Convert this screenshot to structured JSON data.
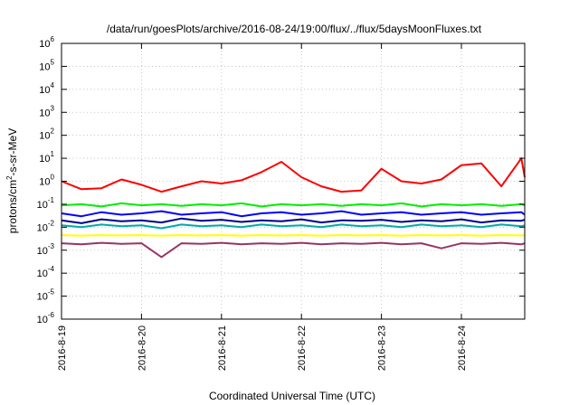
{
  "chart_data": {
    "type": "line",
    "title": "/data/run/goesPlots/archive/2016-08-24/19:00/flux/../flux/5daysMoonFluxes.txt",
    "xlabel": "Coordinated Universal Time (UTC)",
    "ylabel": "protons/cm²-s-sr-MeV",
    "yscale": "log",
    "ylim": [
      1e-06,
      1000000.0
    ],
    "xlim": [
      "2016-08-19 00:00",
      "2016-08-24 19:00"
    ],
    "grid": true,
    "x_tick_labels": [
      "2016-8-19",
      "2016-8-20",
      "2016-8-21",
      "2016-8-22",
      "2016-8-23",
      "2016-8-24"
    ],
    "y_ticks": [
      {
        "value": 1e-06,
        "base": "10",
        "exp": "-6"
      },
      {
        "value": 1e-05,
        "base": "10",
        "exp": "-5"
      },
      {
        "value": 0.0001,
        "base": "10",
        "exp": "-4"
      },
      {
        "value": 0.001,
        "base": "10",
        "exp": "-3"
      },
      {
        "value": 0.01,
        "base": "10",
        "exp": "-2"
      },
      {
        "value": 0.1,
        "base": "10",
        "exp": "-1"
      },
      {
        "value": 1,
        "base": "10",
        "exp": "0"
      },
      {
        "value": 10,
        "base": "10",
        "exp": "1"
      },
      {
        "value": 100,
        "base": "10",
        "exp": "2"
      },
      {
        "value": 1000,
        "base": "10",
        "exp": "3"
      },
      {
        "value": 10000,
        "base": "10",
        "exp": "4"
      },
      {
        "value": 100000,
        "base": "10",
        "exp": "5"
      },
      {
        "value": 1000000,
        "base": "10",
        "exp": "6"
      }
    ],
    "x_hours": [
      0,
      6,
      12,
      18,
      24,
      30,
      36,
      42,
      48,
      54,
      60,
      66,
      72,
      78,
      84,
      90,
      96,
      102,
      108,
      114,
      120,
      126,
      132,
      138,
      139
    ],
    "series": [
      {
        "color": "#ff0000",
        "values": [
          1.0,
          0.45,
          0.5,
          1.2,
          0.7,
          0.35,
          0.6,
          1.0,
          0.8,
          1.1,
          2.5,
          7.0,
          1.5,
          0.6,
          0.35,
          0.4,
          3.5,
          1.0,
          0.8,
          1.2,
          5.0,
          6.0,
          0.6,
          10.0,
          1.5
        ]
      },
      {
        "color": "#00ee00",
        "values": [
          0.09,
          0.1,
          0.08,
          0.11,
          0.09,
          0.1,
          0.085,
          0.1,
          0.09,
          0.11,
          0.08,
          0.1,
          0.09,
          0.1,
          0.085,
          0.1,
          0.09,
          0.11,
          0.08,
          0.1,
          0.09,
          0.1,
          0.085,
          0.1,
          0.09
        ]
      },
      {
        "color": "#0000ff",
        "values": [
          0.04,
          0.03,
          0.045,
          0.035,
          0.04,
          0.05,
          0.035,
          0.04,
          0.045,
          0.03,
          0.04,
          0.045,
          0.035,
          0.04,
          0.05,
          0.035,
          0.04,
          0.045,
          0.035,
          0.04,
          0.045,
          0.035,
          0.04,
          0.045,
          0.035
        ]
      },
      {
        "color": "#00008b",
        "values": [
          0.02,
          0.015,
          0.022,
          0.018,
          0.02,
          0.016,
          0.024,
          0.019,
          0.021,
          0.017,
          0.02,
          0.018,
          0.022,
          0.016,
          0.02,
          0.019,
          0.021,
          0.017,
          0.02,
          0.018,
          0.022,
          0.016,
          0.02,
          0.019,
          0.021
        ]
      },
      {
        "color": "#00aaaa",
        "values": [
          0.012,
          0.01,
          0.013,
          0.011,
          0.012,
          0.009,
          0.013,
          0.011,
          0.012,
          0.01,
          0.013,
          0.011,
          0.012,
          0.01,
          0.013,
          0.011,
          0.012,
          0.01,
          0.013,
          0.011,
          0.012,
          0.01,
          0.013,
          0.011,
          0.012
        ]
      },
      {
        "color": "#ffff00",
        "values": [
          0.0045,
          0.0043,
          0.0045,
          0.0044,
          0.0045,
          0.0043,
          0.0045,
          0.0044,
          0.0045,
          0.0043,
          0.0045,
          0.0044,
          0.0045,
          0.0043,
          0.0045,
          0.0044,
          0.0045,
          0.0043,
          0.0045,
          0.0044,
          0.0045,
          0.0043,
          0.0045,
          0.0044,
          0.0045
        ]
      },
      {
        "color": "#993366",
        "values": [
          0.002,
          0.0018,
          0.0021,
          0.0019,
          0.002,
          0.0005,
          0.002,
          0.0019,
          0.0021,
          0.0018,
          0.002,
          0.0019,
          0.0021,
          0.0018,
          0.002,
          0.0019,
          0.0021,
          0.0018,
          0.002,
          0.0012,
          0.002,
          0.0019,
          0.0021,
          0.0018,
          0.002
        ]
      }
    ]
  }
}
